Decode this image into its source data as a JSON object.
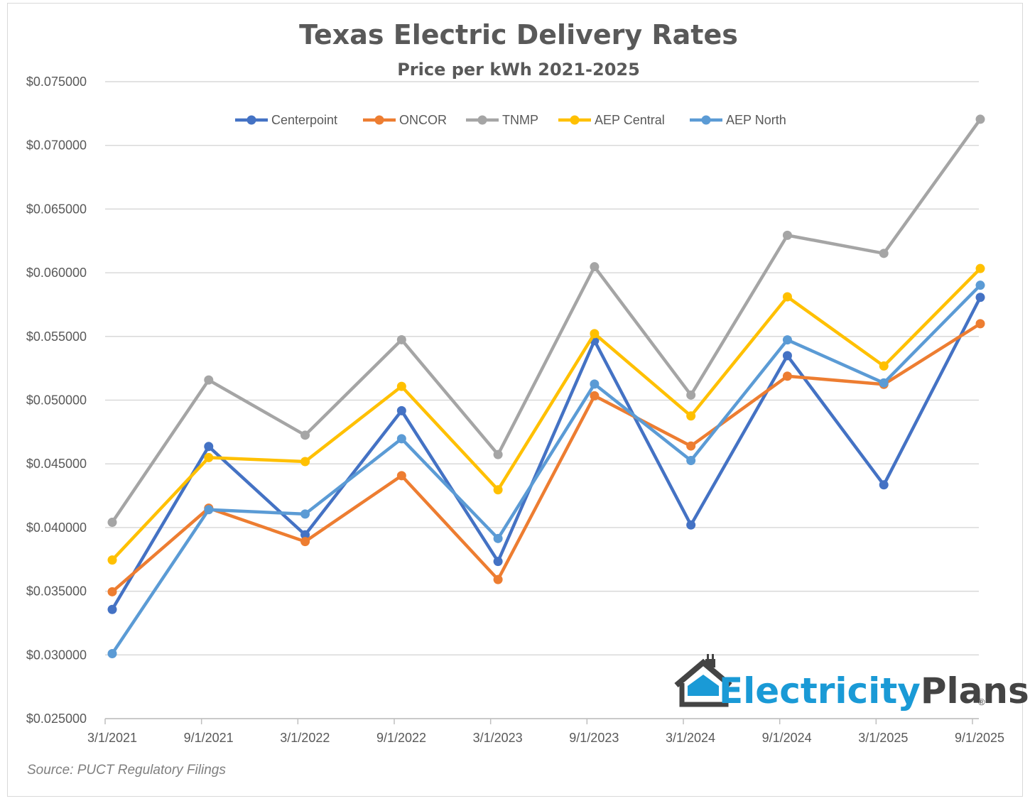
{
  "chart_data": {
    "type": "line",
    "title": "Texas Electric Delivery Rates",
    "subtitle": "Price per kWh 2021-2025",
    "categories": [
      "3/1/2021",
      "9/1/2021",
      "3/1/2022",
      "9/1/2022",
      "3/1/2023",
      "9/1/2023",
      "3/1/2024",
      "9/1/2024",
      "3/1/2025",
      "9/1/2025"
    ],
    "y_ticks": [
      "$0.025000",
      "$0.030000",
      "$0.035000",
      "$0.040000",
      "$0.045000",
      "$0.050000",
      "$0.055000",
      "$0.060000",
      "$0.065000",
      "$0.070000",
      "$0.075000"
    ],
    "ylim": [
      0.025,
      0.075
    ],
    "grid": true,
    "legend_position": "top",
    "series": [
      {
        "name": "Centerpoint",
        "color": "#4472c4",
        "values": [
          0.03357,
          0.04636,
          0.03943,
          0.04917,
          0.03734,
          0.05467,
          0.0402,
          0.05349,
          0.04335,
          0.05807
        ]
      },
      {
        "name": "ONCOR",
        "color": "#ed7d31",
        "values": [
          0.03496,
          0.04152,
          0.0389,
          0.04407,
          0.03592,
          0.05034,
          0.0464,
          0.05188,
          0.05124,
          0.056
        ]
      },
      {
        "name": "TNMP",
        "color": "#a5a5a5",
        "values": [
          0.04041,
          0.05158,
          0.04725,
          0.05474,
          0.04573,
          0.06047,
          0.0504,
          0.06294,
          0.06152,
          0.07205
        ]
      },
      {
        "name": "AEP Central",
        "color": "#ffc000",
        "values": [
          0.03745,
          0.04549,
          0.04518,
          0.05108,
          0.04296,
          0.05522,
          0.04876,
          0.05811,
          0.05268,
          0.06033
        ]
      },
      {
        "name": "AEP North",
        "color": "#5b9bd5",
        "values": [
          0.0301,
          0.0414,
          0.04106,
          0.04697,
          0.03914,
          0.05126,
          0.04526,
          0.05473,
          0.05135,
          0.05902
        ]
      }
    ],
    "source": "Source: PUCT Regulatory Filings"
  },
  "logo": {
    "part1": "Electricity",
    "part2": "Plans",
    "reg": "®",
    "colors": {
      "primary": "#1a9ad6",
      "secondary": "#444444"
    }
  }
}
